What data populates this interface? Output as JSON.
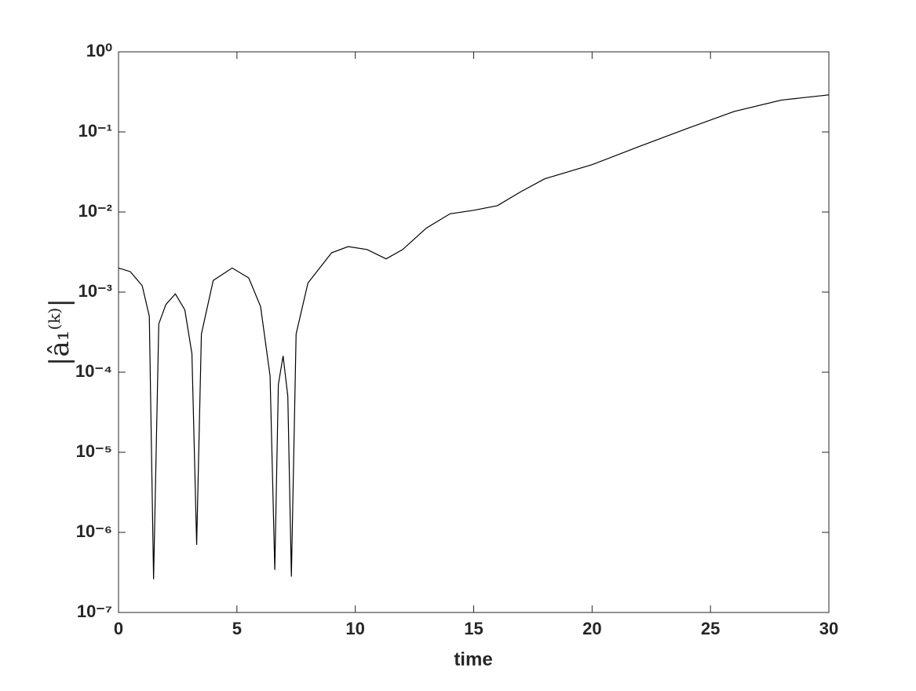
{
  "chart_data": {
    "type": "line",
    "x_label": "time",
    "y_label": "|â₁⁽ᵏ⁾|",
    "yscale": "log",
    "grid": false,
    "xlim": [
      0,
      30
    ],
    "xticks": [
      0,
      5,
      10,
      15,
      20,
      25,
      30
    ],
    "ylim": [
      1e-07,
      1
    ],
    "yticks": [
      {
        "value": 1e-07,
        "label": "10⁻⁷"
      },
      {
        "value": 1e-06,
        "label": "10⁻⁶"
      },
      {
        "value": 1e-05,
        "label": "10⁻⁵"
      },
      {
        "value": 0.0001,
        "label": "10⁻⁴"
      },
      {
        "value": 0.001,
        "label": "10⁻³"
      },
      {
        "value": 0.01,
        "label": "10⁻²"
      },
      {
        "value": 0.1,
        "label": "10⁻¹"
      },
      {
        "value": 1,
        "label": "10⁰"
      }
    ],
    "x": [
      0,
      0.5,
      1.0,
      1.3,
      1.48,
      1.7,
      2.0,
      2.4,
      2.8,
      3.1,
      3.3,
      3.5,
      4.0,
      4.8,
      5.5,
      6.0,
      6.4,
      6.6,
      6.75,
      6.95,
      7.15,
      7.3,
      7.5,
      8.0,
      9.0,
      9.7,
      10.5,
      11.3,
      12.0,
      13.0,
      14.0,
      15.0,
      16.0,
      17.0,
      18.0,
      20.0,
      22.0,
      24.0,
      26.0,
      28.0,
      30.0
    ],
    "series": [
      {
        "color": "#000000",
        "values": [
          0.002,
          0.0018,
          0.0012,
          0.0005,
          2.6e-07,
          0.0004,
          0.0007,
          0.00095,
          0.0006,
          0.00017,
          7e-07,
          0.0003,
          0.0014,
          0.002,
          0.0015,
          0.00066,
          9e-05,
          3.4e-07,
          7e-05,
          0.00016,
          5e-05,
          2.8e-07,
          0.0003,
          0.0013,
          0.0031,
          0.0037,
          0.0034,
          0.0026,
          0.0034,
          0.0063,
          0.0095,
          0.0105,
          0.012,
          0.018,
          0.026,
          0.039,
          0.066,
          0.11,
          0.18,
          0.25,
          0.29
        ]
      }
    ]
  }
}
